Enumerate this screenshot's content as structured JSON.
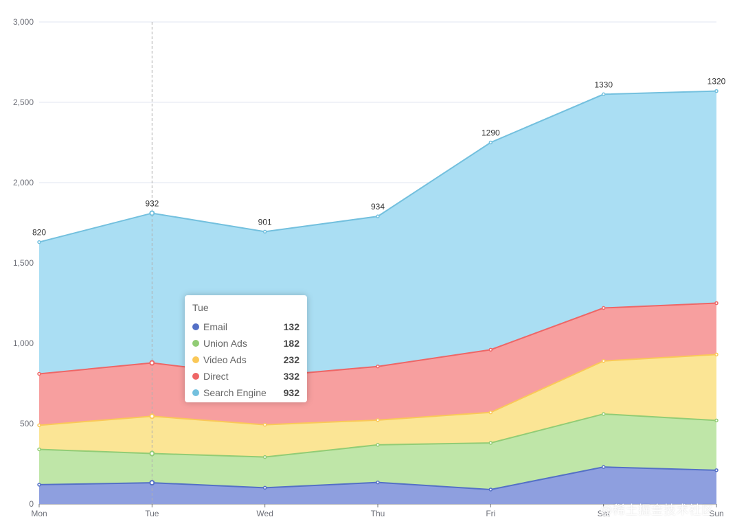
{
  "chart_data": {
    "type": "area",
    "stacked": true,
    "categories": [
      "Mon",
      "Tue",
      "Wed",
      "Thu",
      "Fri",
      "Sat",
      "Sun"
    ],
    "ylim": [
      0,
      3000
    ],
    "yticks": [
      0,
      500,
      1000,
      1500,
      2000,
      2500,
      3000
    ],
    "ytick_labels": [
      "0",
      "500",
      "1,000",
      "1,500",
      "2,000",
      "2,500",
      "3,000"
    ],
    "grid": true,
    "series": [
      {
        "name": "Email",
        "color": "#5470c6",
        "fill": "#8e9fdf",
        "values": [
          120,
          132,
          101,
          134,
          90,
          230,
          210
        ]
      },
      {
        "name": "Union Ads",
        "color": "#91cc75",
        "fill": "#bfe6a8",
        "values": [
          220,
          182,
          191,
          234,
          290,
          330,
          310
        ]
      },
      {
        "name": "Video Ads",
        "color": "#fac858",
        "fill": "#fbe595",
        "values": [
          150,
          232,
          201,
          154,
          190,
          330,
          410
        ]
      },
      {
        "name": "Direct",
        "color": "#ee6666",
        "fill": "#f79f9f",
        "values": [
          320,
          332,
          301,
          334,
          390,
          330,
          320
        ]
      },
      {
        "name": "Search Engine",
        "color": "#73c0de",
        "fill": "#aadef3",
        "values": [
          820,
          932,
          901,
          934,
          1290,
          1330,
          1320
        ]
      }
    ],
    "top_labels": [
      "820",
      "932",
      "901",
      "934",
      "1290",
      "1330",
      "1320"
    ],
    "hover_category": "Tue"
  },
  "tooltip": {
    "title": "Tue",
    "rows": [
      {
        "name": "Email",
        "value": "132",
        "color": "#5470c6"
      },
      {
        "name": "Union Ads",
        "value": "182",
        "color": "#91cc75"
      },
      {
        "name": "Video Ads",
        "value": "232",
        "color": "#fac858"
      },
      {
        "name": "Direct",
        "value": "332",
        "color": "#ee6666"
      },
      {
        "name": "Search Engine",
        "value": "932",
        "color": "#73c0de"
      }
    ]
  },
  "watermark": "@稀土掘金技术社区"
}
